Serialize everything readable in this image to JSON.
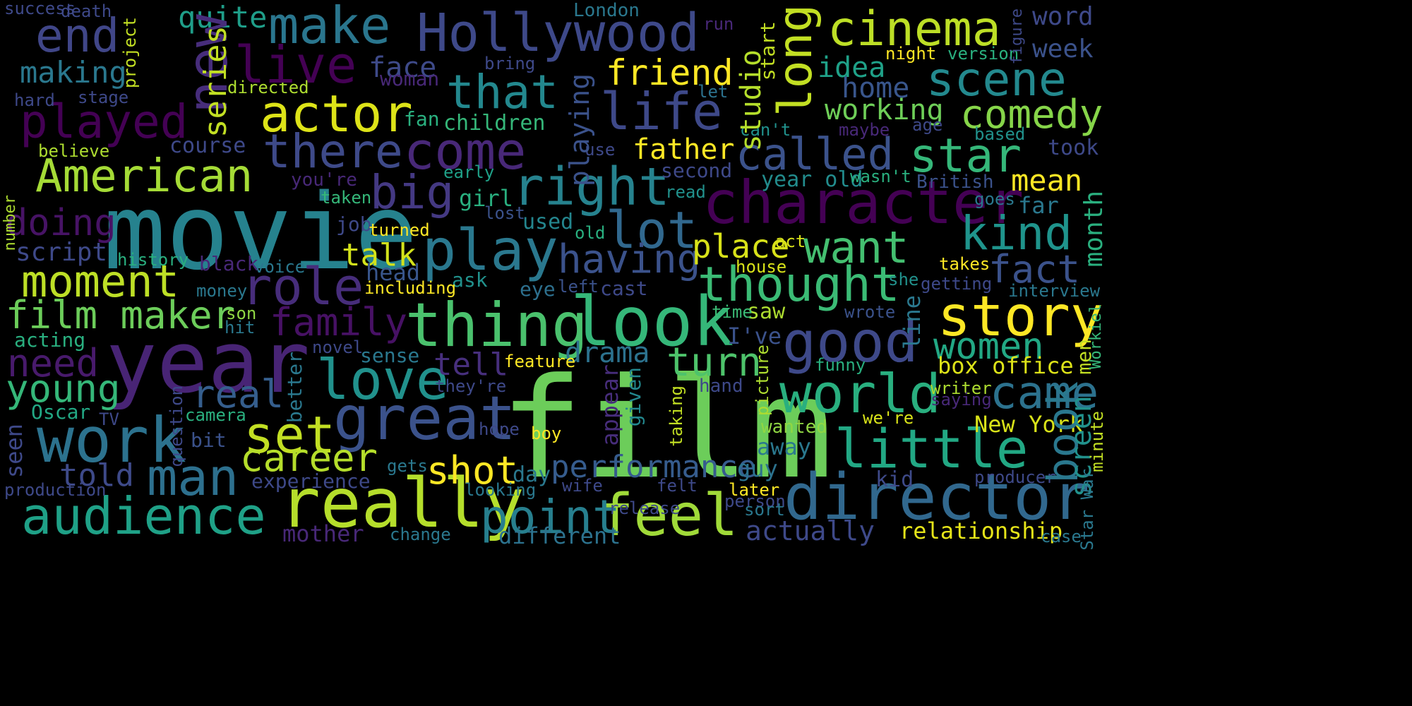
{
  "cloud": {
    "background": "#000000",
    "words": [
      {
        "text": "film",
        "color": "#6ccd5a",
        "vertical": false
      },
      {
        "text": "movie",
        "color": "#26828e",
        "vertical": false
      },
      {
        "text": "year",
        "color": "#482475",
        "vertical": false
      },
      {
        "text": "look",
        "color": "#35b779",
        "vertical": false
      },
      {
        "text": "thing",
        "color": "#4ac16d",
        "vertical": false
      },
      {
        "text": "really",
        "color": "#b5de2b",
        "vertical": false
      },
      {
        "text": "director",
        "color": "#31688e",
        "vertical": false
      },
      {
        "text": "character",
        "color": "#440154",
        "vertical": false
      },
      {
        "text": "great",
        "color": "#3b528b",
        "vertical": false
      },
      {
        "text": "work",
        "color": "#2c728e",
        "vertical": false
      },
      {
        "text": "feel",
        "color": "#a0da39",
        "vertical": false
      },
      {
        "text": "play",
        "color": "#2a788e",
        "vertical": false
      },
      {
        "text": "story",
        "color": "#fde725",
        "vertical": false
      },
      {
        "text": "good",
        "color": "#3e4989",
        "vertical": false
      },
      {
        "text": "world",
        "color": "#29af7f",
        "vertical": false
      },
      {
        "text": "love",
        "color": "#21918c",
        "vertical": false
      },
      {
        "text": "little",
        "color": "#22a884",
        "vertical": false
      },
      {
        "text": "Hollywood",
        "color": "#3e4989",
        "vertical": false
      },
      {
        "text": "actor",
        "color": "#dde318",
        "vertical": false
      },
      {
        "text": "audience",
        "color": "#1fa187",
        "vertical": false
      },
      {
        "text": "man",
        "color": "#2d708e",
        "vertical": false
      },
      {
        "text": "role",
        "color": "#472d7b",
        "vertical": false
      },
      {
        "text": "come",
        "color": "#482878",
        "vertical": false
      },
      {
        "text": "life",
        "color": "#3e4989",
        "vertical": false
      },
      {
        "text": "right",
        "color": "#26828e",
        "vertical": false
      },
      {
        "text": "lot",
        "color": "#31688e",
        "vertical": false
      },
      {
        "text": "set",
        "color": "#c2df23",
        "vertical": false
      },
      {
        "text": "point",
        "color": "#277f8e",
        "vertical": false
      },
      {
        "text": "make",
        "color": "#2a768e",
        "vertical": false
      },
      {
        "text": "thought",
        "color": "#3bbb75",
        "vertical": false
      },
      {
        "text": "cinema",
        "color": "#bddf26",
        "vertical": false
      },
      {
        "text": "scene",
        "color": "#23898e",
        "vertical": false
      },
      {
        "text": "star",
        "color": "#35b779",
        "vertical": false
      },
      {
        "text": "kind",
        "color": "#1f948c",
        "vertical": false
      },
      {
        "text": "called",
        "color": "#3b528b",
        "vertical": false
      },
      {
        "text": "came",
        "color": "#2c728e",
        "vertical": false
      },
      {
        "text": "played",
        "color": "#440154",
        "vertical": false
      },
      {
        "text": "American",
        "color": "#a5db36",
        "vertical": false
      },
      {
        "text": "moment",
        "color": "#bddf26",
        "vertical": false
      },
      {
        "text": "end",
        "color": "#404688",
        "vertical": false
      },
      {
        "text": "there",
        "color": "#3e4a89",
        "vertical": false
      },
      {
        "text": "big",
        "color": "#443983",
        "vertical": false
      },
      {
        "text": "that",
        "color": "#23888e",
        "vertical": false
      },
      {
        "text": "want",
        "color": "#44bf70",
        "vertical": false
      },
      {
        "text": "career",
        "color": "#b5de2b",
        "vertical": false
      },
      {
        "text": "shot",
        "color": "#fde725",
        "vertical": false
      },
      {
        "text": "family",
        "color": "#471164",
        "vertical": false
      },
      {
        "text": "real",
        "color": "#355e8d",
        "vertical": false
      },
      {
        "text": "turn",
        "color": "#4ec36b",
        "vertical": false
      },
      {
        "text": "having",
        "color": "#3b528b",
        "vertical": false
      },
      {
        "text": "performance",
        "color": "#365c8d",
        "vertical": false
      },
      {
        "text": "women",
        "color": "#22a884",
        "vertical": false
      },
      {
        "text": "comedy",
        "color": "#86d549",
        "vertical": false
      },
      {
        "text": "fact",
        "color": "#3b528b",
        "vertical": false
      },
      {
        "text": "need",
        "color": "#481a6c",
        "vertical": false
      },
      {
        "text": "young",
        "color": "#35b779",
        "vertical": false
      },
      {
        "text": "doing",
        "color": "#471365",
        "vertical": false
      },
      {
        "text": "film maker",
        "color": "#6ccd5a",
        "vertical": false
      },
      {
        "text": "told",
        "color": "#3e4a89",
        "vertical": false
      },
      {
        "text": "actually",
        "color": "#3e4989",
        "vertical": false
      },
      {
        "text": "friend",
        "color": "#fde725",
        "vertical": false
      },
      {
        "text": "drama",
        "color": "#2c728e",
        "vertical": false
      },
      {
        "text": "making",
        "color": "#2a788e",
        "vertical": false
      },
      {
        "text": "quite",
        "color": "#1f9e89",
        "vertical": false
      },
      {
        "text": "face",
        "color": "#3e4a89",
        "vertical": false
      },
      {
        "text": "place",
        "color": "#d8e219",
        "vertical": false
      },
      {
        "text": "father",
        "color": "#fde725",
        "vertical": false
      },
      {
        "text": "talk",
        "color": "#d2e21b",
        "vertical": false
      },
      {
        "text": "tell",
        "color": "#472f7d",
        "vertical": false
      },
      {
        "text": "working",
        "color": "#6ece58",
        "vertical": false
      },
      {
        "text": "home",
        "color": "#39568c",
        "vertical": false
      },
      {
        "text": "idea",
        "color": "#1fa188",
        "vertical": false
      },
      {
        "text": "mean",
        "color": "#fde725",
        "vertical": false
      },
      {
        "text": "week",
        "color": "#3b528b",
        "vertical": false
      },
      {
        "text": "word",
        "color": "#3e4989",
        "vertical": false
      },
      {
        "text": "box office",
        "color": "#dde318",
        "vertical": false
      },
      {
        "text": "New York",
        "color": "#d8e219",
        "vertical": false
      },
      {
        "text": "relationship",
        "color": "#e5e419",
        "vertical": false
      },
      {
        "text": "different",
        "color": "#2c728e",
        "vertical": false
      },
      {
        "text": "mother",
        "color": "#482878",
        "vertical": false
      },
      {
        "text": "script",
        "color": "#3e4989",
        "vertical": false
      },
      {
        "text": "acting",
        "color": "#29af7f",
        "vertical": false
      },
      {
        "text": "course",
        "color": "#3e4989",
        "vertical": false
      },
      {
        "text": "away",
        "color": "#2a788e",
        "vertical": false
      },
      {
        "text": "guy",
        "color": "#2c728e",
        "vertical": false
      },
      {
        "text": "year old",
        "color": "#228c8d",
        "vertical": false
      },
      {
        "text": "far",
        "color": "#2a788e",
        "vertical": false
      },
      {
        "text": "British",
        "color": "#3b528b",
        "vertical": false
      },
      {
        "text": "Oscar",
        "color": "#22a884",
        "vertical": false
      },
      {
        "text": "bit",
        "color": "#3b528b",
        "vertical": false
      },
      {
        "text": "girl",
        "color": "#29af7f",
        "vertical": false
      },
      {
        "text": "used",
        "color": "#24868e",
        "vertical": false
      },
      {
        "text": "head",
        "color": "#39568c",
        "vertical": false
      },
      {
        "text": "eye",
        "color": "#2d708e",
        "vertical": false
      },
      {
        "text": "cast",
        "color": "#3e4989",
        "vertical": false
      },
      {
        "text": "saw",
        "color": "#addc30",
        "vertical": false
      },
      {
        "text": "I've",
        "color": "#3b528b",
        "vertical": false
      },
      {
        "text": "wanted",
        "color": "#90d743",
        "vertical": false
      },
      {
        "text": "children",
        "color": "#35b779",
        "vertical": false
      },
      {
        "text": "second",
        "color": "#3e4989",
        "vertical": false
      },
      {
        "text": "day",
        "color": "#2a788e",
        "vertical": false
      },
      {
        "text": "kid",
        "color": "#3e4a89",
        "vertical": false
      },
      {
        "text": "woman",
        "color": "#482878",
        "vertical": false
      },
      {
        "text": "fan",
        "color": "#2ab07f",
        "vertical": false
      },
      {
        "text": "you're",
        "color": "#482878",
        "vertical": false
      },
      {
        "text": "job",
        "color": "#3e4989",
        "vertical": false
      },
      {
        "text": "ask",
        "color": "#21918c",
        "vertical": false
      },
      {
        "text": "black",
        "color": "#482878",
        "vertical": false
      },
      {
        "text": "experience",
        "color": "#3e4989",
        "vertical": false
      },
      {
        "text": "history",
        "color": "#29af7f",
        "vertical": false
      },
      {
        "text": "voice",
        "color": "#2a788e",
        "vertical": false
      },
      {
        "text": "money",
        "color": "#2a788e",
        "vertical": false
      },
      {
        "text": "including",
        "color": "#fde725",
        "vertical": false
      },
      {
        "text": "turned",
        "color": "#fde725",
        "vertical": false
      },
      {
        "text": "taken",
        "color": "#35b779",
        "vertical": false
      },
      {
        "text": "early",
        "color": "#1fa188",
        "vertical": false
      },
      {
        "text": "lost",
        "color": "#3b528b",
        "vertical": false
      },
      {
        "text": "old",
        "color": "#29af7f",
        "vertical": false
      },
      {
        "text": "read",
        "color": "#21918c",
        "vertical": false
      },
      {
        "text": "use",
        "color": "#3e4989",
        "vertical": false
      },
      {
        "text": "let",
        "color": "#2c728e",
        "vertical": false
      },
      {
        "text": "can't",
        "color": "#21918c",
        "vertical": false
      },
      {
        "text": "wasn't",
        "color": "#2ab07f",
        "vertical": false
      },
      {
        "text": "maybe",
        "color": "#482878",
        "vertical": false
      },
      {
        "text": "age",
        "color": "#3e4989",
        "vertical": false
      },
      {
        "text": "based",
        "color": "#21918c",
        "vertical": false
      },
      {
        "text": "took",
        "color": "#3e4989",
        "vertical": false
      },
      {
        "text": "goes",
        "color": "#2a788e",
        "vertical": false
      },
      {
        "text": "interview",
        "color": "#2a788e",
        "vertical": false
      },
      {
        "text": "getting",
        "color": "#3e4989",
        "vertical": false
      },
      {
        "text": "she",
        "color": "#21918c",
        "vertical": false
      },
      {
        "text": "takes",
        "color": "#fde725",
        "vertical": false
      },
      {
        "text": "act",
        "color": "#d8e219",
        "vertical": false
      },
      {
        "text": "house",
        "color": "#d8e219",
        "vertical": false
      },
      {
        "text": "left",
        "color": "#3b528b",
        "vertical": false
      },
      {
        "text": "time",
        "color": "#3bbb75",
        "vertical": false
      },
      {
        "text": "wrote",
        "color": "#3b528b",
        "vertical": false
      },
      {
        "text": "son",
        "color": "#90d743",
        "vertical": false
      },
      {
        "text": "hit",
        "color": "#2a788e",
        "vertical": false
      },
      {
        "text": "novel",
        "color": "#3e4989",
        "vertical": false
      },
      {
        "text": "sense",
        "color": "#2a788e",
        "vertical": false
      },
      {
        "text": "feature",
        "color": "#fde725",
        "vertical": false
      },
      {
        "text": "they're",
        "color": "#3e4989",
        "vertical": false
      },
      {
        "text": "hand",
        "color": "#3e4989",
        "vertical": false
      },
      {
        "text": "funny",
        "color": "#29af7f",
        "vertical": false
      },
      {
        "text": "writer",
        "color": "#addc30",
        "vertical": false
      },
      {
        "text": "saying",
        "color": "#482878",
        "vertical": false
      },
      {
        "text": "we're",
        "color": "#d8e219",
        "vertical": false
      },
      {
        "text": "hope",
        "color": "#3e4989",
        "vertical": false
      },
      {
        "text": "boy",
        "color": "#fde725",
        "vertical": false
      },
      {
        "text": "camera",
        "color": "#2ab07f",
        "vertical": false
      },
      {
        "text": "TV",
        "color": "#3e4989",
        "vertical": false
      },
      {
        "text": "gets",
        "color": "#2a788e",
        "vertical": false
      },
      {
        "text": "looking",
        "color": "#2a788e",
        "vertical": false
      },
      {
        "text": "wife",
        "color": "#3e4989",
        "vertical": false
      },
      {
        "text": "felt",
        "color": "#3e4989",
        "vertical": false
      },
      {
        "text": "release",
        "color": "#3e4989",
        "vertical": false
      },
      {
        "text": "later",
        "color": "#fde725",
        "vertical": false
      },
      {
        "text": "person",
        "color": "#3e4989",
        "vertical": false
      },
      {
        "text": "sort",
        "color": "#2a788e",
        "vertical": false
      },
      {
        "text": "producer",
        "color": "#3e4989",
        "vertical": false
      },
      {
        "text": "case",
        "color": "#2a788e",
        "vertical": false
      },
      {
        "text": "change",
        "color": "#2a788e",
        "vertical": false
      },
      {
        "text": "production",
        "color": "#3e4989",
        "vertical": false
      },
      {
        "text": "success",
        "color": "#3e4989",
        "vertical": false
      },
      {
        "text": "death",
        "color": "#3e4989",
        "vertical": false
      },
      {
        "text": "London",
        "color": "#2a788e",
        "vertical": false
      },
      {
        "text": "run",
        "color": "#482878",
        "vertical": false
      },
      {
        "text": "night",
        "color": "#fde725",
        "vertical": false
      },
      {
        "text": "version",
        "color": "#2ab07f",
        "vertical": false
      },
      {
        "text": "bring",
        "color": "#3e4989",
        "vertical": false
      },
      {
        "text": "directed",
        "color": "#addc30",
        "vertical": false
      },
      {
        "text": "hard",
        "color": "#3e4989",
        "vertical": false
      },
      {
        "text": "stage",
        "color": "#3e4989",
        "vertical": false
      },
      {
        "text": "believe",
        "color": "#addc30",
        "vertical": false
      },
      {
        "text": "new",
        "color": "#472d7b",
        "vertical": true
      },
      {
        "text": "live",
        "color": "#440154",
        "vertical": false
      },
      {
        "text": "series",
        "color": "#c2df23",
        "vertical": true
      },
      {
        "text": "long",
        "color": "#c2df23",
        "vertical": true
      },
      {
        "text": "studio",
        "color": "#b5de2b",
        "vertical": true
      },
      {
        "text": "playing",
        "color": "#3b528b",
        "vertical": true
      },
      {
        "text": "start",
        "color": "#c2df23",
        "vertical": true
      },
      {
        "text": "book",
        "color": "#2a788e",
        "vertical": true
      },
      {
        "text": "screen",
        "color": "#21918c",
        "vertical": true
      },
      {
        "text": "month",
        "color": "#2ab07f",
        "vertical": true
      },
      {
        "text": "men",
        "color": "#c2df23",
        "vertical": true
      },
      {
        "text": "line",
        "color": "#2a788e",
        "vertical": true
      },
      {
        "text": "appear",
        "color": "#472d7b",
        "vertical": true
      },
      {
        "text": "given",
        "color": "#23888e",
        "vertical": true
      },
      {
        "text": "taking",
        "color": "#c2df23",
        "vertical": true
      },
      {
        "text": "picture",
        "color": "#addc30",
        "vertical": true
      },
      {
        "text": "better",
        "color": "#2a788e",
        "vertical": true
      },
      {
        "text": "question",
        "color": "#3e4989",
        "vertical": true
      },
      {
        "text": "seen",
        "color": "#3e4989",
        "vertical": true
      },
      {
        "text": "project",
        "color": "#c2df23",
        "vertical": true
      },
      {
        "text": "number",
        "color": "#addc30",
        "vertical": true
      },
      {
        "text": "figure",
        "color": "#3e4989",
        "vertical": true
      },
      {
        "text": "Star War",
        "color": "#2a788e",
        "vertical": true
      },
      {
        "text": "minute",
        "color": "#c2df23",
        "vertical": true
      },
      {
        "text": "Workiel",
        "color": "#35b779",
        "vertical": true
      }
    ]
  }
}
